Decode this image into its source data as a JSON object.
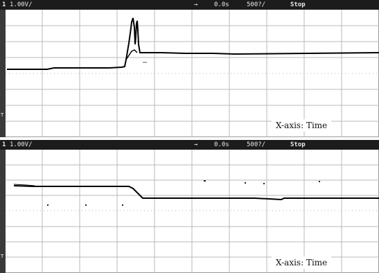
{
  "panels": [
    {
      "channel": "1",
      "volts_per_div": "1.00V/",
      "trigger_arrow": "→",
      "time_offset": "0.0s",
      "time_per_div": "500?/",
      "run_state": "Stop",
      "axis_caption": "X-axis: Time",
      "rail_marker": "T"
    },
    {
      "channel": "1",
      "volts_per_div": "1.00V/",
      "trigger_arrow": "→",
      "time_offset": "0.0s",
      "time_per_div": "500?/",
      "run_state": "Stop",
      "axis_caption": "X-axis: Time",
      "rail_marker": "T"
    }
  ],
  "colors": {
    "status_bar_bg": "#1c1c1c",
    "status_bar_text": "#e8e8e8",
    "grid": "#b0b0b0",
    "trace": "#000000",
    "background": "#ffffff"
  }
}
